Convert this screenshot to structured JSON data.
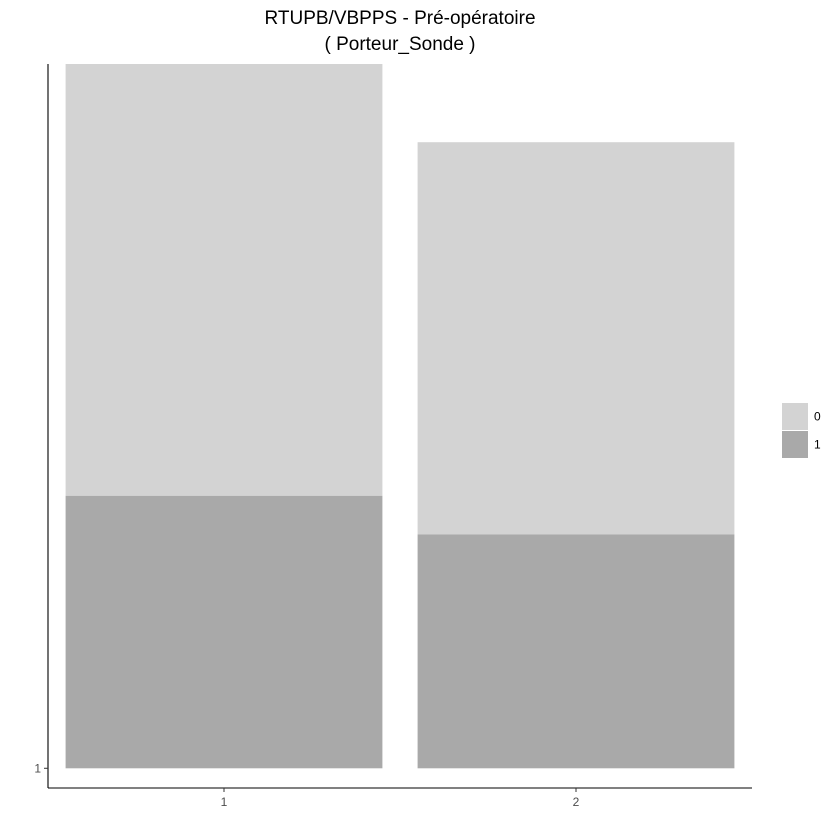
{
  "chart_data": {
    "type": "bar",
    "stacked": true,
    "title": "RTUPB/VBPPS - Pré-opératoire",
    "subtitle": "( Porteur_Sonde )",
    "xlabel": "",
    "ylabel": "",
    "categories": [
      "1",
      "2"
    ],
    "series": [
      {
        "name": "1",
        "color": "#a9a9a9",
        "values": [
          0.387,
          0.332
        ]
      },
      {
        "name": "0",
        "color": "#d3d3d3",
        "values": [
          0.613,
          0.557
        ]
      }
    ],
    "ylim": [
      -0.028,
      1.0
    ],
    "y_ticks": [
      {
        "value": 0.0,
        "label": "1"
      }
    ],
    "grid": false,
    "legend": {
      "position": "right",
      "order": [
        "0",
        "1"
      ]
    }
  }
}
